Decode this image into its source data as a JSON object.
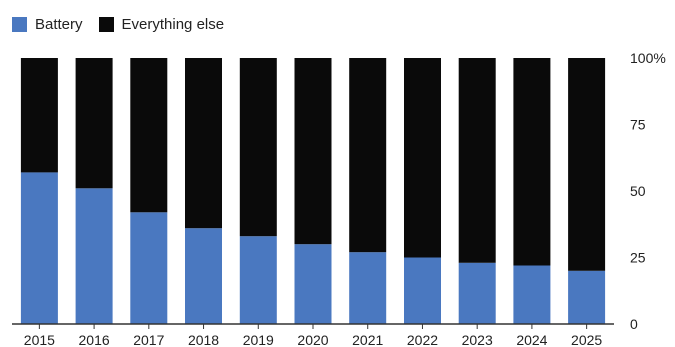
{
  "chart_data": {
    "type": "bar",
    "stacked": true,
    "title": "",
    "xlabel": "",
    "ylabel": "",
    "categories": [
      "2015",
      "2016",
      "2017",
      "2018",
      "2019",
      "2020",
      "2021",
      "2022",
      "2023",
      "2024",
      "2025"
    ],
    "series": [
      {
        "name": "Battery",
        "color": "#4a78c0",
        "values": [
          57,
          51,
          42,
          36,
          33,
          30,
          27,
          25,
          23,
          22,
          20
        ]
      },
      {
        "name": "Everything else",
        "color": "#0a0a0a",
        "values": [
          43,
          49,
          58,
          64,
          67,
          70,
          73,
          75,
          77,
          78,
          80
        ]
      }
    ],
    "ylim": [
      0,
      100
    ],
    "yticks": [
      "0",
      "25",
      "50",
      "75",
      "100%"
    ],
    "grid": false,
    "legend_position": "top-left"
  }
}
